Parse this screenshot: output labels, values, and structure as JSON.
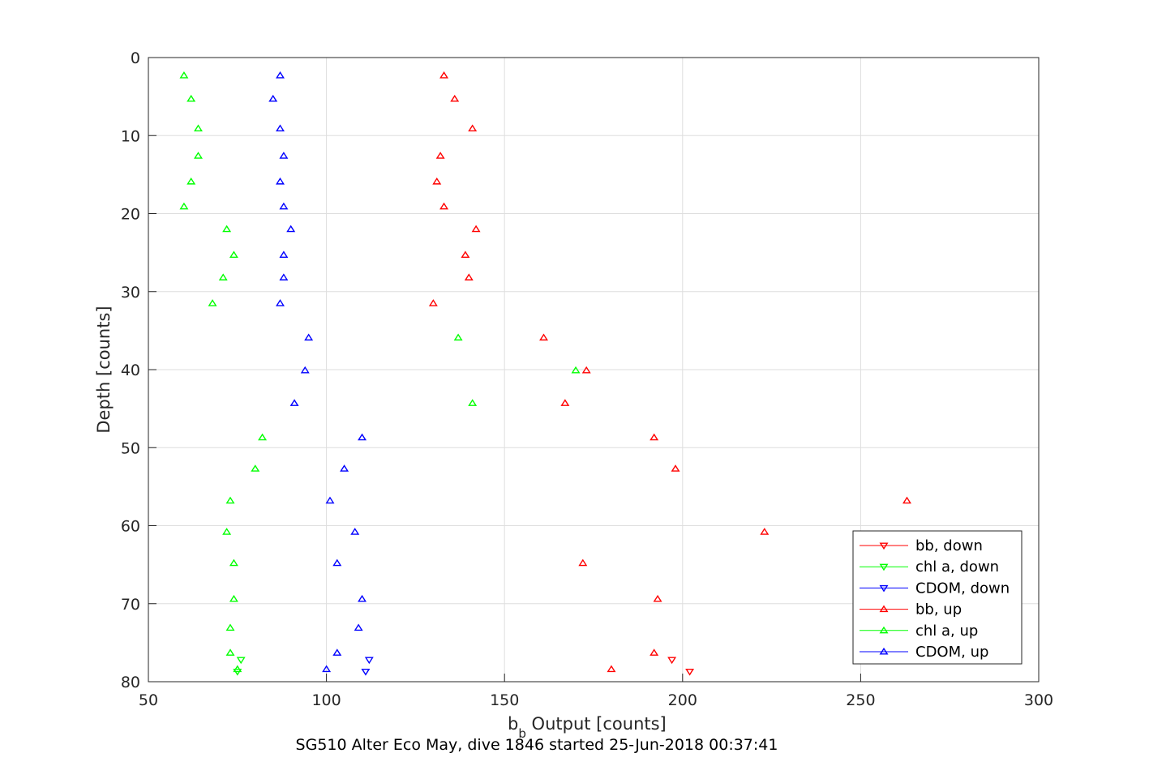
{
  "chart_data": {
    "type": "scatter",
    "title": "",
    "caption": "SG510 Alter Eco May, dive 1846 started 25-Jun-2018 00:37:41",
    "xlabel": {
      "base": "b",
      "sub": "b",
      "rest": " Output [counts]"
    },
    "ylabel": "Depth [counts]",
    "xlim": [
      50,
      300
    ],
    "ylim": [
      0,
      80
    ],
    "y_reversed": true,
    "grid": true,
    "xticks": [
      50,
      100,
      150,
      200,
      250,
      300
    ],
    "yticks": [
      0,
      10,
      20,
      30,
      40,
      50,
      60,
      70,
      80
    ],
    "xtick_labels": [
      "50",
      "100",
      "150",
      "200",
      "250",
      "300"
    ],
    "ytick_labels": [
      "0",
      "10",
      "20",
      "30",
      "40",
      "50",
      "60",
      "70",
      "80"
    ],
    "legend_position": "bottom-right",
    "series": [
      {
        "name": "bb, down",
        "color": "#ff0000",
        "marker": "triangle-down",
        "x": [
          197,
          202
        ],
        "y": [
          77.2,
          78.7
        ]
      },
      {
        "name": "chl a, down",
        "color": "#00ff00",
        "marker": "triangle-down",
        "x": [
          76,
          75
        ],
        "y": [
          77.2,
          78.7
        ]
      },
      {
        "name": "CDOM, down",
        "color": "#0000ff",
        "marker": "triangle-down",
        "x": [
          112,
          111
        ],
        "y": [
          77.2,
          78.7
        ]
      },
      {
        "name": "bb, up",
        "color": "#ff0000",
        "marker": "triangle-up",
        "x": [
          133,
          136,
          141,
          132,
          131,
          133,
          142,
          139,
          140,
          130,
          161,
          173,
          167,
          192,
          198,
          263,
          223,
          172,
          193,
          192,
          180
        ],
        "y": [
          2.3,
          5.3,
          9.1,
          12.6,
          15.9,
          19.1,
          22.0,
          25.3,
          28.2,
          31.5,
          35.9,
          40.1,
          44.3,
          48.7,
          52.7,
          56.8,
          60.8,
          64.8,
          69.4,
          76.3,
          78.4
        ]
      },
      {
        "name": "chl a, up",
        "color": "#00ff00",
        "marker": "triangle-up",
        "x": [
          60,
          62,
          64,
          64,
          62,
          60,
          72,
          74,
          71,
          68,
          137,
          170,
          141,
          82,
          80,
          73,
          72,
          74,
          74,
          73,
          73,
          75
        ],
        "y": [
          2.3,
          5.3,
          9.1,
          12.6,
          15.9,
          19.1,
          22.0,
          25.3,
          28.2,
          31.5,
          35.9,
          40.1,
          44.3,
          48.7,
          52.7,
          56.8,
          60.8,
          64.8,
          69.4,
          73.1,
          76.3,
          78.4
        ]
      },
      {
        "name": "CDOM, up",
        "color": "#0000ff",
        "marker": "triangle-up",
        "x": [
          87,
          85,
          87,
          88,
          87,
          88,
          90,
          88,
          88,
          87,
          95,
          94,
          91,
          110,
          105,
          101,
          108,
          103,
          110,
          109,
          103,
          100
        ],
        "y": [
          2.3,
          5.3,
          9.1,
          12.6,
          15.9,
          19.1,
          22.0,
          25.3,
          28.2,
          31.5,
          35.9,
          40.1,
          44.3,
          48.7,
          52.7,
          56.8,
          60.8,
          64.8,
          69.4,
          73.1,
          76.3,
          78.4
        ]
      }
    ]
  }
}
